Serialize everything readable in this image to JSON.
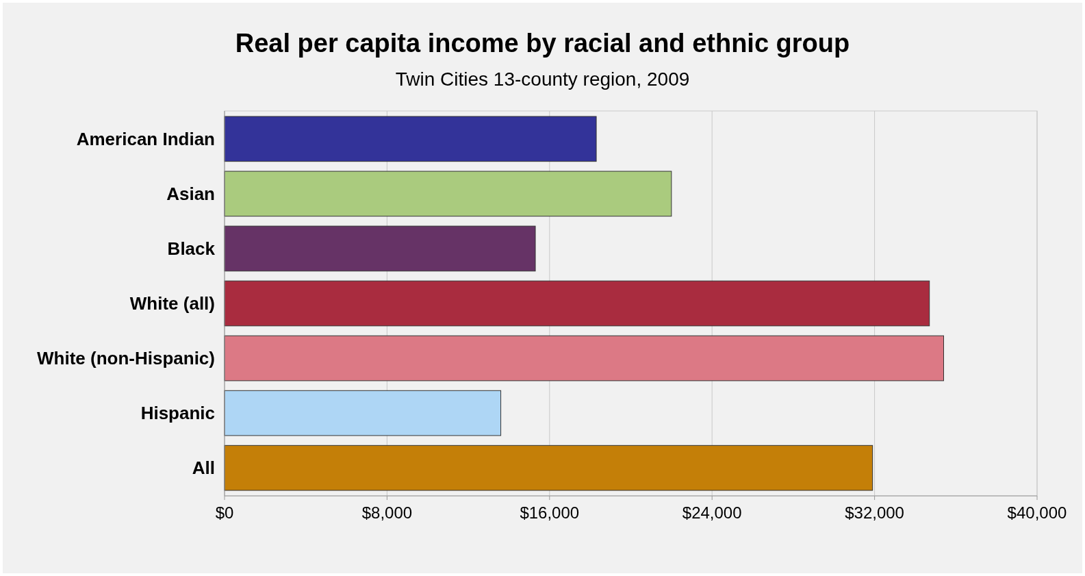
{
  "chart_data": {
    "type": "bar",
    "orientation": "horizontal",
    "title": "Real per capita income by racial and ethnic group",
    "subtitle": "Twin Cities 13-county region, 2009",
    "categories": [
      "American Indian",
      "Asian",
      "Black",
      "White (all)",
      "White (non-Hispanic)",
      "Hispanic",
      "All"
    ],
    "values": [
      18300,
      22000,
      15300,
      34700,
      35400,
      13600,
      31900
    ],
    "colors": [
      "#333399",
      "#aacb7e",
      "#663366",
      "#a92c3f",
      "#dc7985",
      "#aed6f5",
      "#c47f08"
    ],
    "xlim": [
      0,
      40000
    ],
    "xticks": [
      {
        "value": 0,
        "label": "$0"
      },
      {
        "value": 8000,
        "label": "$8,000"
      },
      {
        "value": 16000,
        "label": "$16,000"
      },
      {
        "value": 24000,
        "label": "$24,000"
      },
      {
        "value": 32000,
        "label": "$32,000"
      },
      {
        "value": 40000,
        "label": "$40,000"
      }
    ],
    "grid": "x"
  }
}
